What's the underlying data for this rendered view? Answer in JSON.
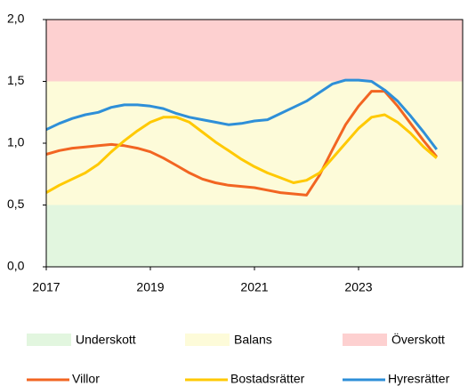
{
  "chart_data": {
    "type": "line",
    "x": [
      2017,
      2017.25,
      2017.5,
      2017.75,
      2018,
      2018.25,
      2018.5,
      2018.75,
      2019,
      2019.25,
      2019.5,
      2019.75,
      2020,
      2020.25,
      2020.5,
      2020.75,
      2021,
      2021.25,
      2021.5,
      2021.75,
      2022,
      2022.25,
      2022.5,
      2022.75,
      2023,
      2023.25,
      2023.5,
      2023.75,
      2024,
      2024.25,
      2024.5
    ],
    "series": [
      {
        "name": "Villor",
        "color": "#f26522",
        "values": [
          0.91,
          0.94,
          0.96,
          0.97,
          0.98,
          0.99,
          0.98,
          0.96,
          0.93,
          0.88,
          0.82,
          0.76,
          0.71,
          0.68,
          0.66,
          0.65,
          0.64,
          0.62,
          0.6,
          0.59,
          0.58,
          0.74,
          0.95,
          1.15,
          1.3,
          1.42,
          1.42,
          1.3,
          1.16,
          1.02,
          0.89
        ]
      },
      {
        "name": "Bostadsrätter",
        "color": "#ffc900",
        "values": [
          0.6,
          0.66,
          0.71,
          0.76,
          0.83,
          0.93,
          1.02,
          1.1,
          1.17,
          1.21,
          1.21,
          1.17,
          1.09,
          1.01,
          0.94,
          0.87,
          0.81,
          0.76,
          0.72,
          0.68,
          0.7,
          0.76,
          0.88,
          1.0,
          1.12,
          1.21,
          1.23,
          1.17,
          1.08,
          0.97,
          0.88
        ]
      },
      {
        "name": "Hyresrätter",
        "color": "#2e8fd8",
        "values": [
          1.11,
          1.16,
          1.2,
          1.23,
          1.25,
          1.29,
          1.31,
          1.31,
          1.3,
          1.28,
          1.24,
          1.21,
          1.19,
          1.17,
          1.15,
          1.16,
          1.18,
          1.19,
          1.24,
          1.29,
          1.34,
          1.41,
          1.48,
          1.51,
          1.51,
          1.5,
          1.43,
          1.34,
          1.22,
          1.09,
          0.95
        ]
      }
    ],
    "bands": [
      {
        "name": "Underskott",
        "range": [
          0,
          0.5
        ],
        "color": "#e2f6df"
      },
      {
        "name": "Balans",
        "range": [
          0.5,
          1.5
        ],
        "color": "#fdfbd9"
      },
      {
        "name": "Överskott",
        "range": [
          1.5,
          2
        ],
        "color": "#fdd0d0"
      }
    ],
    "xlim": [
      2017,
      2025
    ],
    "xticks": [
      2017,
      2019,
      2021,
      2023
    ],
    "ylim": [
      0,
      2
    ],
    "yticks": [
      {
        "value": 0,
        "label": "0,0"
      },
      {
        "value": 0.5,
        "label": "0,5"
      },
      {
        "value": 1,
        "label": "1,0"
      },
      {
        "value": 1.5,
        "label": "1,5"
      },
      {
        "value": 2,
        "label": "2,0"
      }
    ]
  }
}
